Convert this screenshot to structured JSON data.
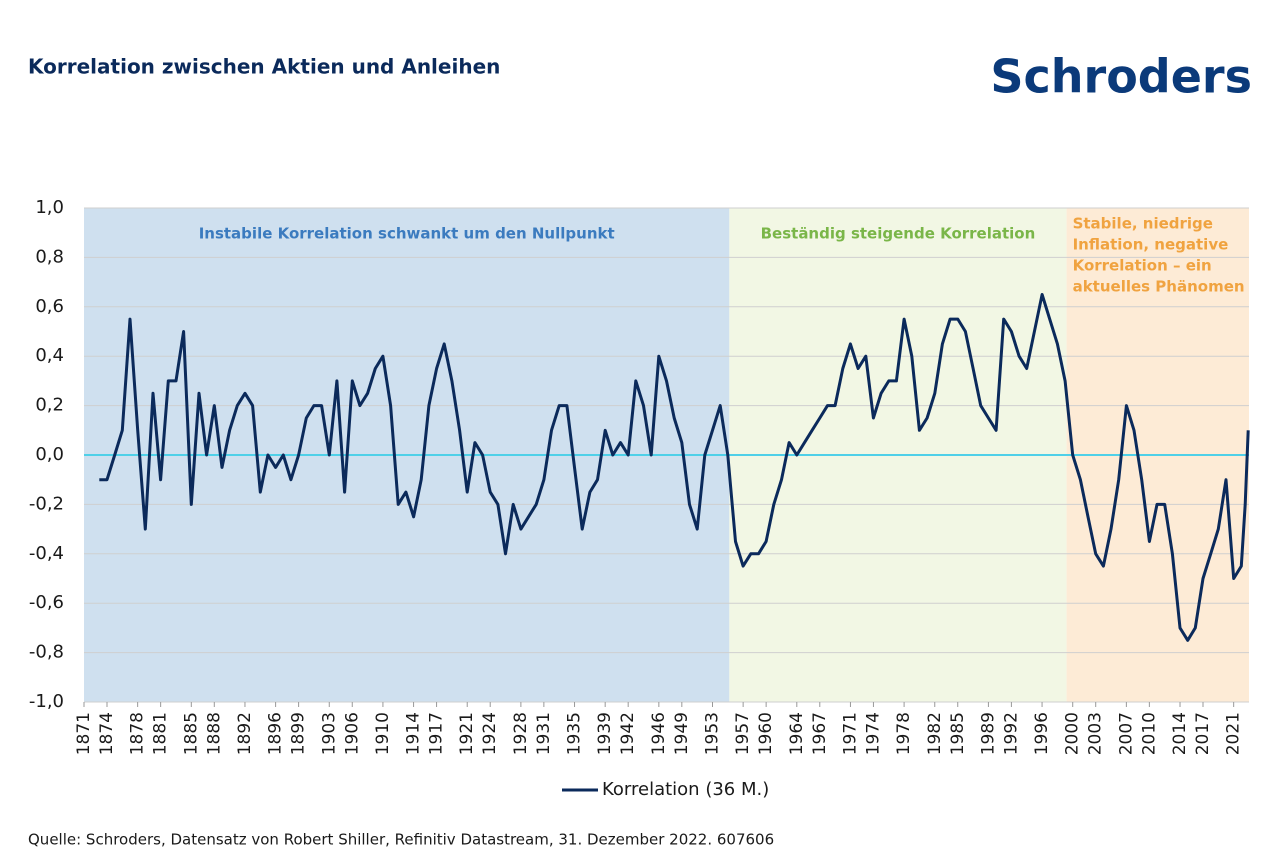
{
  "chart_data": {
    "type": "line",
    "title": "Korrelation zwischen Aktien und Anleihen",
    "logo": "Schroders",
    "source": "Quelle: Schroders, Datensatz von Robert Shiller, Refinitiv Datastream, 31. Dezember 2022. 607606",
    "x": [
      1873,
      1874,
      1875,
      1876,
      1877,
      1878,
      1879,
      1880,
      1881,
      1882,
      1883,
      1884,
      1885,
      1886,
      1887,
      1888,
      1889,
      1890,
      1891,
      1892,
      1893,
      1894,
      1895,
      1896,
      1897,
      1898,
      1899,
      1900,
      1901,
      1902,
      1903,
      1904,
      1905,
      1906,
      1907,
      1908,
      1909,
      1910,
      1911,
      1912,
      1913,
      1914,
      1915,
      1916,
      1917,
      1918,
      1919,
      1920,
      1921,
      1922,
      1923,
      1924,
      1925,
      1926,
      1927,
      1928,
      1929,
      1930,
      1931,
      1932,
      1933,
      1934,
      1935,
      1936,
      1937,
      1938,
      1939,
      1940,
      1941,
      1942,
      1943,
      1944,
      1945,
      1946,
      1947,
      1948,
      1949,
      1950,
      1951,
      1952,
      1953,
      1954,
      1955,
      1956,
      1957,
      1958,
      1959,
      1960,
      1961,
      1962,
      1963,
      1964,
      1965,
      1966,
      1967,
      1968,
      1969,
      1970,
      1971,
      1972,
      1973,
      1974,
      1975,
      1976,
      1977,
      1978,
      1979,
      1980,
      1981,
      1982,
      1983,
      1984,
      1985,
      1986,
      1987,
      1988,
      1989,
      1990,
      1991,
      1992,
      1993,
      1994,
      1995,
      1996,
      1997,
      1998,
      1999,
      2000,
      2001,
      2002,
      2003,
      2004,
      2005,
      2006,
      2007,
      2008,
      2009,
      2010,
      2011,
      2012,
      2013,
      2014,
      2015,
      2016,
      2017,
      2018,
      2019,
      2020,
      2021,
      2022,
      2022.5,
      2022.9
    ],
    "series": [
      {
        "name": "Korrelation (36 M.)",
        "color": "#0b2a5b",
        "values": [
          -0.1,
          -0.1,
          0.0,
          0.1,
          0.55,
          0.1,
          -0.3,
          0.25,
          -0.1,
          0.3,
          0.3,
          0.5,
          -0.2,
          0.25,
          0.0,
          0.2,
          -0.05,
          0.1,
          0.2,
          0.25,
          0.2,
          -0.15,
          0.0,
          -0.05,
          0.0,
          -0.1,
          0.0,
          0.15,
          0.2,
          0.2,
          0.0,
          0.3,
          -0.15,
          0.3,
          0.2,
          0.25,
          0.35,
          0.4,
          0.2,
          -0.2,
          -0.15,
          -0.25,
          -0.1,
          0.2,
          0.35,
          0.45,
          0.3,
          0.1,
          -0.15,
          0.05,
          0.0,
          -0.15,
          -0.2,
          -0.4,
          -0.2,
          -0.3,
          -0.25,
          -0.2,
          -0.1,
          0.1,
          0.2,
          0.2,
          -0.05,
          -0.3,
          -0.15,
          -0.1,
          0.1,
          0.0,
          0.05,
          0.0,
          0.3,
          0.2,
          0.0,
          0.4,
          0.3,
          0.15,
          0.05,
          -0.2,
          -0.3,
          0.0,
          0.1,
          0.2,
          0.0,
          -0.35,
          -0.45,
          -0.4,
          -0.4,
          -0.35,
          -0.2,
          -0.1,
          0.05,
          0.0,
          0.05,
          0.1,
          0.15,
          0.2,
          0.2,
          0.35,
          0.45,
          0.35,
          0.4,
          0.15,
          0.25,
          0.3,
          0.3,
          0.55,
          0.4,
          0.1,
          0.15,
          0.25,
          0.45,
          0.55,
          0.55,
          0.5,
          0.35,
          0.2,
          0.15,
          0.1,
          0.55,
          0.5,
          0.4,
          0.35,
          0.5,
          0.65,
          0.55,
          0.45,
          0.3,
          0.0,
          -0.1,
          -0.25,
          -0.4,
          -0.45,
          -0.3,
          -0.1,
          0.2,
          0.1,
          -0.1,
          -0.35,
          -0.2,
          -0.2,
          -0.4,
          -0.7,
          -0.75,
          -0.7,
          -0.5,
          -0.4,
          -0.3,
          -0.1,
          -0.5,
          -0.45,
          -0.2,
          0.1
        ]
      }
    ],
    "regions": [
      {
        "label": [
          "Instabile Korrelation schwankt um den Nullpunkt"
        ],
        "start": 1871,
        "end": 1955.2,
        "color": "#cfe0ef",
        "text_color": "#3b7bbf"
      },
      {
        "label": [
          "Beständig steigende Korrelation"
        ],
        "start": 1955.2,
        "end": 1999.2,
        "color": "#f2f7e4",
        "text_color": "#7ab648"
      },
      {
        "label": [
          "Stabile, niedrige",
          "Inflation, negative",
          "Korrelation – ein",
          "aktuelles Phänomen"
        ],
        "start": 1999.2,
        "end": 2023,
        "color": "#fdebd6",
        "text_color": "#f0a340"
      }
    ],
    "zero_line_color": "#4fd0e8",
    "xlim": [
      1871,
      2023
    ],
    "xticks": [
      1871,
      1874,
      1878,
      1881,
      1885,
      1888,
      1892,
      1896,
      1899,
      1903,
      1906,
      1910,
      1914,
      1917,
      1921,
      1924,
      1928,
      1931,
      1935,
      1939,
      1942,
      1946,
      1949,
      1953,
      1957,
      1960,
      1964,
      1967,
      1971,
      1974,
      1978,
      1982,
      1985,
      1989,
      1992,
      1996,
      2000,
      2003,
      2007,
      2010,
      2014,
      2017,
      2021
    ],
    "ylim": [
      -1,
      1
    ],
    "yticks": [
      {
        "value": -1,
        "label": "-1,0"
      },
      {
        "value": -0.8,
        "label": "-0,8"
      },
      {
        "value": -0.6,
        "label": "-0,6"
      },
      {
        "value": -0.4,
        "label": "-0,4"
      },
      {
        "value": -0.2,
        "label": "-0,2"
      },
      {
        "value": 0,
        "label": "0,0"
      },
      {
        "value": 0.2,
        "label": "0,2"
      },
      {
        "value": 0.4,
        "label": "0,4"
      },
      {
        "value": 0.6,
        "label": "0,6"
      },
      {
        "value": 0.8,
        "label": "0,8"
      },
      {
        "value": 1,
        "label": "1,0"
      }
    ],
    "grid": true
  }
}
